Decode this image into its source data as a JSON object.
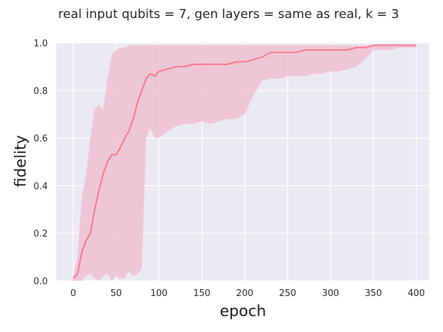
{
  "chart_data": {
    "type": "line",
    "title": "real input qubits = 7, gen layers = same as real, k = 3",
    "xlabel": "epoch",
    "ylabel": "fidelity",
    "xlim": [
      -20,
      415
    ],
    "ylim": [
      0,
      1
    ],
    "xticks": [
      0,
      50,
      100,
      150,
      200,
      250,
      300,
      350,
      400
    ],
    "yticks": [
      0.0,
      0.2,
      0.4,
      0.6,
      0.8,
      1.0
    ],
    "grid": true,
    "legend": "none",
    "colors": {
      "line": "#f7758a",
      "band": "#f0bfd0",
      "plot_background": "#eaeaf2",
      "grid": "#ffffff"
    },
    "series": [
      {
        "x": [
          0,
          5,
          10,
          15,
          20,
          25,
          30,
          35,
          40,
          45,
          50,
          55,
          60,
          65,
          70,
          75,
          80,
          85,
          90,
          95,
          100,
          110,
          120,
          130,
          140,
          150,
          160,
          170,
          180,
          190,
          200,
          210,
          220,
          230,
          240,
          250,
          260,
          270,
          280,
          290,
          300,
          310,
          320,
          330,
          340,
          350,
          360,
          370,
          380,
          390,
          400
        ],
        "y": [
          0.01,
          0.03,
          0.12,
          0.17,
          0.2,
          0.3,
          0.38,
          0.45,
          0.5,
          0.53,
          0.53,
          0.56,
          0.6,
          0.63,
          0.68,
          0.75,
          0.8,
          0.85,
          0.87,
          0.86,
          0.88,
          0.89,
          0.9,
          0.9,
          0.91,
          0.91,
          0.91,
          0.91,
          0.91,
          0.92,
          0.92,
          0.93,
          0.94,
          0.96,
          0.96,
          0.96,
          0.96,
          0.97,
          0.97,
          0.97,
          0.97,
          0.97,
          0.97,
          0.98,
          0.98,
          0.99,
          0.99,
          0.99,
          0.99,
          0.99,
          0.99
        ],
        "lower": [
          0.0,
          0.0,
          0.0,
          0.02,
          0.03,
          0.01,
          0.0,
          0.02,
          0.03,
          0.0,
          0.02,
          0.01,
          0.01,
          0.04,
          0.02,
          0.03,
          0.05,
          0.6,
          0.64,
          0.6,
          0.6,
          0.63,
          0.65,
          0.66,
          0.66,
          0.67,
          0.66,
          0.67,
          0.68,
          0.68,
          0.7,
          0.78,
          0.84,
          0.85,
          0.85,
          0.86,
          0.86,
          0.86,
          0.87,
          0.87,
          0.88,
          0.88,
          0.89,
          0.9,
          0.93,
          0.97,
          0.97,
          0.97,
          0.98,
          0.98,
          0.98
        ],
        "upper": [
          0.02,
          0.1,
          0.35,
          0.45,
          0.6,
          0.72,
          0.74,
          0.72,
          0.85,
          0.95,
          0.97,
          0.98,
          0.98,
          0.99,
          0.99,
          0.99,
          0.99,
          0.99,
          0.99,
          0.99,
          0.99,
          0.99,
          0.99,
          0.99,
          0.99,
          0.99,
          0.99,
          0.99,
          0.99,
          0.99,
          0.99,
          0.99,
          0.99,
          0.99,
          0.99,
          0.99,
          0.99,
          0.99,
          0.99,
          0.99,
          0.99,
          0.99,
          0.99,
          0.99,
          0.99,
          0.99,
          0.99,
          0.99,
          0.99,
          0.99,
          0.99
        ]
      }
    ]
  }
}
